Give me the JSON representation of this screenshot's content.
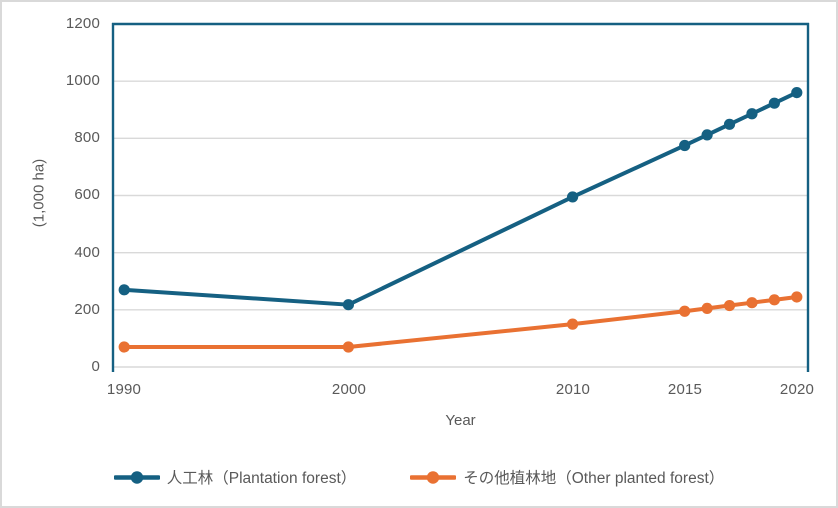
{
  "chart_data": {
    "type": "line",
    "title": "",
    "xlabel": "Year",
    "ylabel": "(1,000 ha)",
    "x": [
      1990,
      2000,
      2010,
      2015,
      2016,
      2017,
      2018,
      2019,
      2020
    ],
    "series": [
      {
        "name": "人工林（Plantation forest）",
        "color": "#156082",
        "values": [
          270,
          218,
          595,
          775,
          812,
          849,
          886,
          923,
          960
        ]
      },
      {
        "name": "その他植林地（Other planted forest）",
        "color": "#E97132",
        "values": [
          70,
          70,
          150,
          195,
          205,
          215,
          225,
          235,
          245
        ]
      }
    ],
    "xlim": [
      1989.5,
      2020.5
    ],
    "ylim": [
      0,
      1200
    ],
    "xticks": [
      1990,
      2000,
      2010,
      2015,
      2020
    ],
    "yticks": [
      0,
      200,
      400,
      600,
      800,
      1000,
      1200
    ],
    "grid": "horizontal",
    "legend_position": "bottom",
    "colors": {
      "gridline": "#D9D9D9",
      "axis_line": "#D9D9D9",
      "plot_border": "#156082",
      "axis_text": "#595959",
      "frame_border": "#D9D9D9"
    }
  }
}
